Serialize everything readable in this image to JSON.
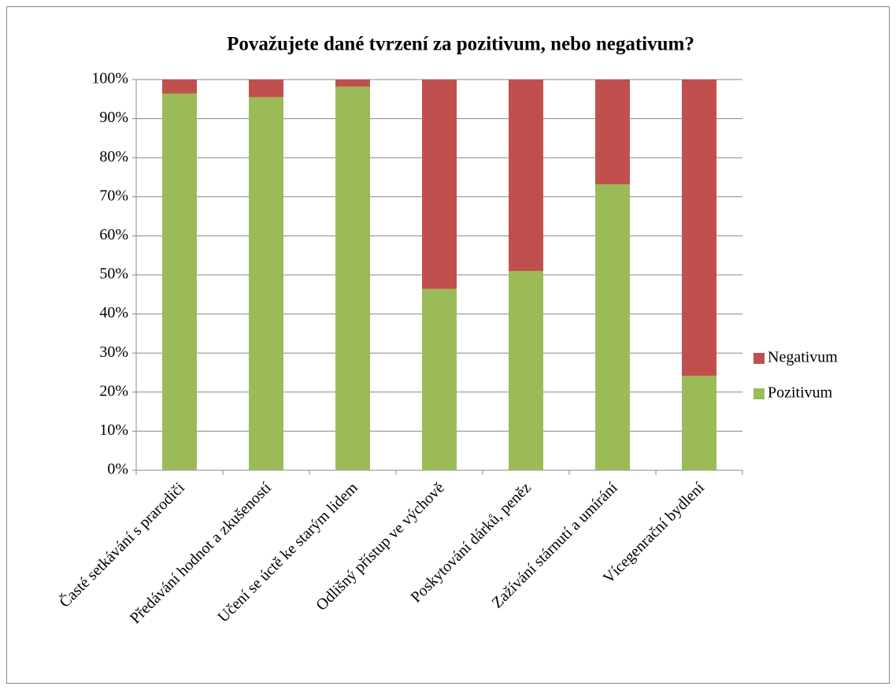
{
  "chart_data": {
    "type": "stacked_bar",
    "title": "Považujete dané tvrzení za pozitivum, nebo negativum?",
    "categories": [
      "Časté setkávání s prarodiči",
      "Předávání hodnot a zkušeností",
      "Učení se úctě ke starým lidem",
      "Odlišný přístup ve výchově",
      "Poskytování dárků, peněz",
      "Zažívání stárnutí a umírání",
      "Vícegenrační bydlení"
    ],
    "series": [
      {
        "name": "Pozitivum",
        "color": "#9bbb59",
        "values": [
          96.4,
          95.5,
          98.2,
          46.4,
          51,
          73.2,
          24.2
        ]
      },
      {
        "name": "Negativum",
        "color": "#c0504d",
        "values": [
          3.6,
          4.5,
          1.8,
          53.6,
          49,
          26.8,
          75.8
        ]
      }
    ],
    "ylim": [
      0,
      100
    ],
    "yticks": [
      {
        "value": 0,
        "label": "0%"
      },
      {
        "value": 10,
        "label": "10%"
      },
      {
        "value": 20,
        "label": "20%"
      },
      {
        "value": 30,
        "label": "30%"
      },
      {
        "value": 40,
        "label": "40%"
      },
      {
        "value": 50,
        "label": "50%"
      },
      {
        "value": 60,
        "label": "60%"
      },
      {
        "value": 70,
        "label": "70%"
      },
      {
        "value": 80,
        "label": "80%"
      },
      {
        "value": 90,
        "label": "90%"
      },
      {
        "value": 100,
        "label": "100%"
      }
    ],
    "grid": true,
    "legend": "right"
  }
}
